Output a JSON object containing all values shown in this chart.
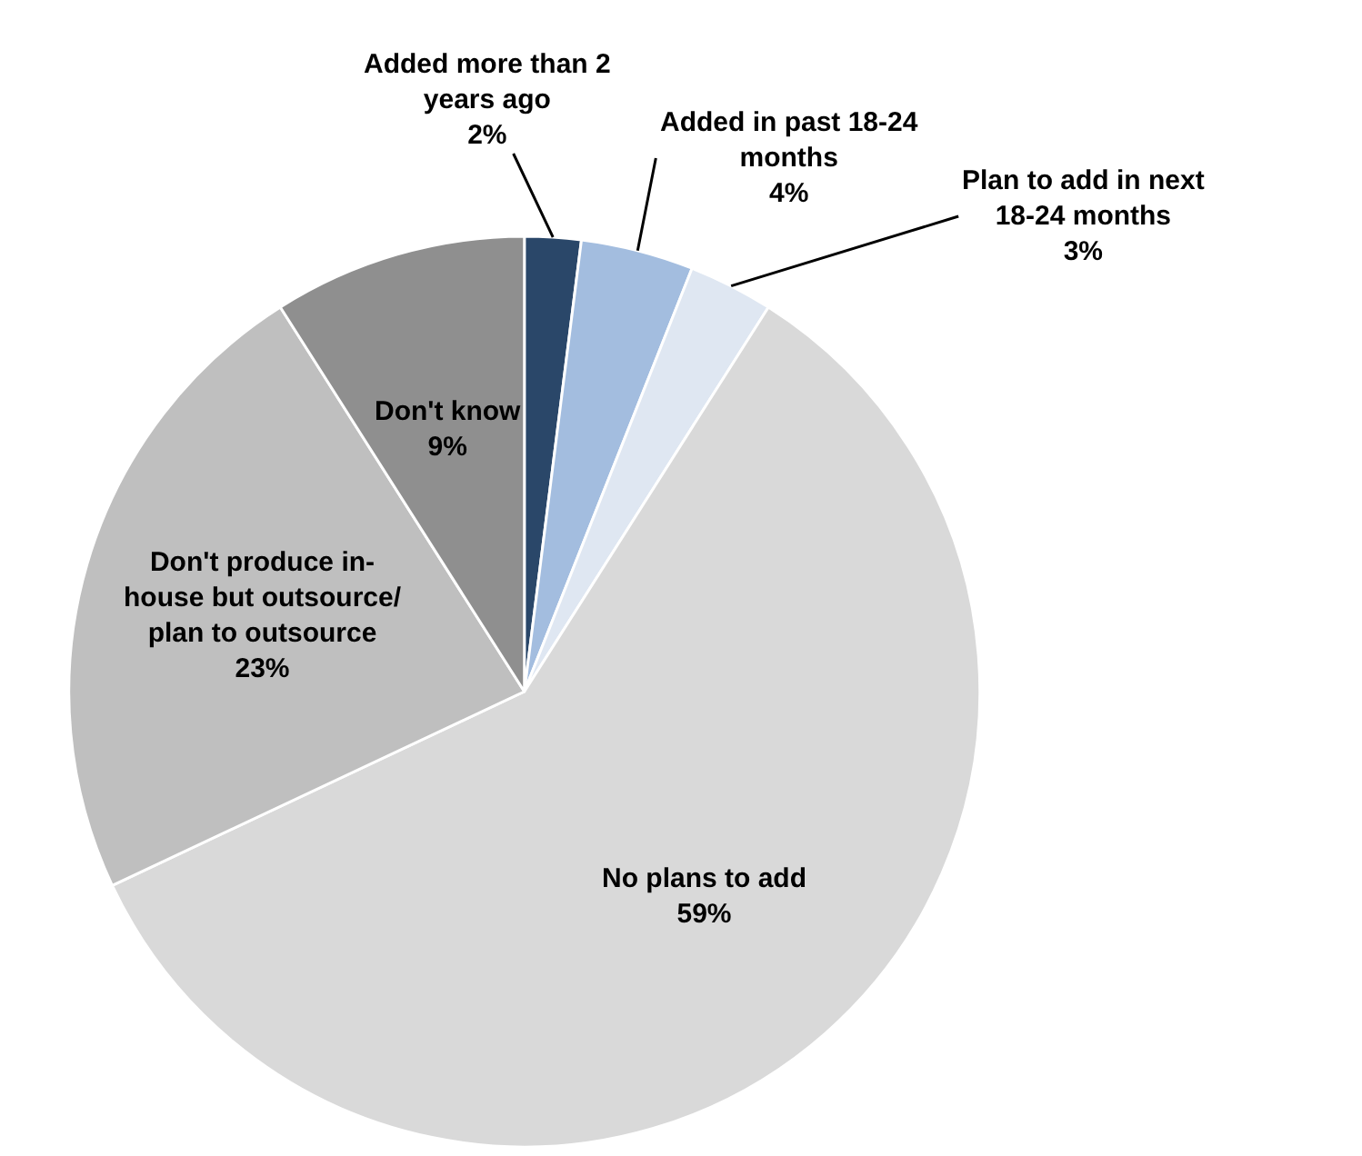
{
  "chart_data": {
    "type": "pie",
    "categories": [
      "Added more than 2 years ago",
      "Added in past 18-24 months",
      "Plan to add in next 18-24 months",
      "No plans to add",
      "Don't produce in-house but outsource/ plan to outsource",
      "Don't know"
    ],
    "values": [
      2,
      4,
      3,
      59,
      23,
      9
    ],
    "value_labels": [
      "2%",
      "4%",
      "3%",
      "59%",
      "23%",
      "9%"
    ],
    "colors": [
      "#2a4769",
      "#a3bddf",
      "#dfe7f2",
      "#d9d9d9",
      "#bfbfbf",
      "#8f8f8f"
    ],
    "legend": false
  }
}
